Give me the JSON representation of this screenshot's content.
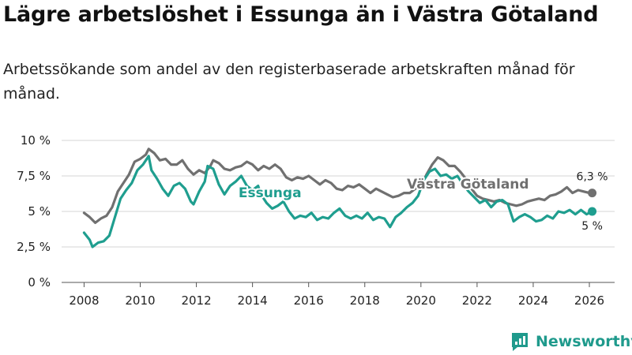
{
  "title": "Lägre arbetslöshet i Essunga än i Västra Götaland",
  "subtitle": "Arbetssökande som andel av den registerbaserade arbetskraften månad för månad.",
  "brand": {
    "name": "Newsworthy"
  },
  "colors": {
    "essunga": "#1f9e8f",
    "vg": "#707070",
    "grid": "#d6d6d6",
    "axis": "#555555"
  },
  "chart_data": {
    "type": "line",
    "title": "Lägre arbetslöshet i Essunga än i Västra Götaland",
    "xlabel": "",
    "ylabel": "",
    "xlim": [
      2007.2,
      2026.9
    ],
    "ylim": [
      0,
      10
    ],
    "y_ticks": [
      0,
      2.5,
      5,
      7.5,
      10
    ],
    "y_tick_labels": [
      "0 %",
      "2,5 %",
      "5 %",
      "7,5 %",
      "10 %"
    ],
    "x_ticks": [
      2008,
      2010,
      2012,
      2014,
      2016,
      2018,
      2020,
      2022,
      2024,
      2026
    ],
    "x_tick_labels": [
      "2008",
      "2010",
      "2012",
      "2014",
      "2016",
      "2018",
      "2020",
      "2022",
      "2024",
      "2026"
    ],
    "series": [
      {
        "name": "Västra Götaland",
        "key": "vg",
        "end_label": "6,3 %",
        "points": [
          [
            2008.0,
            4.9
          ],
          [
            2008.2,
            4.6
          ],
          [
            2008.4,
            4.2
          ],
          [
            2008.6,
            4.5
          ],
          [
            2008.8,
            4.7
          ],
          [
            2009.0,
            5.3
          ],
          [
            2009.2,
            6.4
          ],
          [
            2009.4,
            7.0
          ],
          [
            2009.6,
            7.6
          ],
          [
            2009.8,
            8.5
          ],
          [
            2010.0,
            8.7
          ],
          [
            2010.2,
            9.0
          ],
          [
            2010.3,
            9.4
          ],
          [
            2010.5,
            9.1
          ],
          [
            2010.7,
            8.6
          ],
          [
            2010.9,
            8.7
          ],
          [
            2011.1,
            8.3
          ],
          [
            2011.3,
            8.3
          ],
          [
            2011.5,
            8.6
          ],
          [
            2011.7,
            8.0
          ],
          [
            2011.9,
            7.6
          ],
          [
            2012.1,
            7.9
          ],
          [
            2012.3,
            7.7
          ],
          [
            2012.5,
            8.2
          ],
          [
            2012.6,
            8.6
          ],
          [
            2012.8,
            8.4
          ],
          [
            2013.0,
            8.0
          ],
          [
            2013.2,
            7.9
          ],
          [
            2013.4,
            8.1
          ],
          [
            2013.6,
            8.2
          ],
          [
            2013.8,
            8.5
          ],
          [
            2014.0,
            8.3
          ],
          [
            2014.2,
            7.9
          ],
          [
            2014.4,
            8.2
          ],
          [
            2014.6,
            8.0
          ],
          [
            2014.8,
            8.3
          ],
          [
            2015.0,
            8.0
          ],
          [
            2015.2,
            7.4
          ],
          [
            2015.4,
            7.2
          ],
          [
            2015.6,
            7.4
          ],
          [
            2015.8,
            7.3
          ],
          [
            2016.0,
            7.5
          ],
          [
            2016.2,
            7.2
          ],
          [
            2016.4,
            6.9
          ],
          [
            2016.6,
            7.2
          ],
          [
            2016.8,
            7.0
          ],
          [
            2017.0,
            6.6
          ],
          [
            2017.2,
            6.5
          ],
          [
            2017.4,
            6.8
          ],
          [
            2017.6,
            6.7
          ],
          [
            2017.8,
            6.9
          ],
          [
            2018.0,
            6.6
          ],
          [
            2018.2,
            6.3
          ],
          [
            2018.4,
            6.6
          ],
          [
            2018.6,
            6.4
          ],
          [
            2018.8,
            6.2
          ],
          [
            2019.0,
            6.0
          ],
          [
            2019.2,
            6.1
          ],
          [
            2019.4,
            6.3
          ],
          [
            2019.6,
            6.3
          ],
          [
            2019.8,
            6.6
          ],
          [
            2020.0,
            6.8
          ],
          [
            2020.2,
            7.6
          ],
          [
            2020.4,
            8.3
          ],
          [
            2020.6,
            8.8
          ],
          [
            2020.8,
            8.6
          ],
          [
            2021.0,
            8.2
          ],
          [
            2021.2,
            8.2
          ],
          [
            2021.4,
            7.8
          ],
          [
            2021.6,
            7.3
          ],
          [
            2021.8,
            6.6
          ],
          [
            2022.0,
            6.1
          ],
          [
            2022.2,
            5.9
          ],
          [
            2022.4,
            5.8
          ],
          [
            2022.6,
            5.7
          ],
          [
            2022.8,
            5.8
          ],
          [
            2023.0,
            5.6
          ],
          [
            2023.2,
            5.5
          ],
          [
            2023.4,
            5.4
          ],
          [
            2023.6,
            5.5
          ],
          [
            2023.8,
            5.7
          ],
          [
            2024.0,
            5.8
          ],
          [
            2024.2,
            5.9
          ],
          [
            2024.4,
            5.8
          ],
          [
            2024.6,
            6.1
          ],
          [
            2024.8,
            6.2
          ],
          [
            2025.0,
            6.4
          ],
          [
            2025.2,
            6.7
          ],
          [
            2025.4,
            6.3
          ],
          [
            2025.6,
            6.5
          ],
          [
            2025.8,
            6.4
          ],
          [
            2026.0,
            6.3
          ],
          [
            2026.1,
            6.3
          ]
        ]
      },
      {
        "name": "Essunga",
        "key": "essunga",
        "end_label": "5 %",
        "points": [
          [
            2008.0,
            3.5
          ],
          [
            2008.2,
            3.0
          ],
          [
            2008.3,
            2.5
          ],
          [
            2008.5,
            2.8
          ],
          [
            2008.7,
            2.9
          ],
          [
            2008.9,
            3.3
          ],
          [
            2009.1,
            4.6
          ],
          [
            2009.3,
            5.9
          ],
          [
            2009.5,
            6.5
          ],
          [
            2009.7,
            7.0
          ],
          [
            2009.9,
            7.9
          ],
          [
            2010.1,
            8.3
          ],
          [
            2010.3,
            8.9
          ],
          [
            2010.4,
            7.9
          ],
          [
            2010.6,
            7.3
          ],
          [
            2010.8,
            6.6
          ],
          [
            2011.0,
            6.1
          ],
          [
            2011.2,
            6.8
          ],
          [
            2011.4,
            7.0
          ],
          [
            2011.6,
            6.6
          ],
          [
            2011.8,
            5.7
          ],
          [
            2011.9,
            5.5
          ],
          [
            2012.1,
            6.4
          ],
          [
            2012.3,
            7.1
          ],
          [
            2012.4,
            8.2
          ],
          [
            2012.6,
            8.0
          ],
          [
            2012.8,
            6.9
          ],
          [
            2013.0,
            6.2
          ],
          [
            2013.2,
            6.8
          ],
          [
            2013.4,
            7.1
          ],
          [
            2013.6,
            7.5
          ],
          [
            2013.8,
            6.8
          ],
          [
            2014.0,
            6.5
          ],
          [
            2014.2,
            6.8
          ],
          [
            2014.3,
            6.2
          ],
          [
            2014.5,
            5.6
          ],
          [
            2014.7,
            5.2
          ],
          [
            2014.9,
            5.4
          ],
          [
            2015.1,
            5.7
          ],
          [
            2015.3,
            5.0
          ],
          [
            2015.5,
            4.5
          ],
          [
            2015.7,
            4.7
          ],
          [
            2015.9,
            4.6
          ],
          [
            2016.1,
            4.9
          ],
          [
            2016.3,
            4.4
          ],
          [
            2016.5,
            4.6
          ],
          [
            2016.7,
            4.5
          ],
          [
            2016.9,
            4.9
          ],
          [
            2017.1,
            5.2
          ],
          [
            2017.3,
            4.7
          ],
          [
            2017.5,
            4.5
          ],
          [
            2017.7,
            4.7
          ],
          [
            2017.9,
            4.5
          ],
          [
            2018.1,
            4.9
          ],
          [
            2018.3,
            4.4
          ],
          [
            2018.5,
            4.6
          ],
          [
            2018.7,
            4.5
          ],
          [
            2018.9,
            3.9
          ],
          [
            2019.1,
            4.6
          ],
          [
            2019.3,
            4.9
          ],
          [
            2019.5,
            5.3
          ],
          [
            2019.7,
            5.6
          ],
          [
            2019.9,
            6.1
          ],
          [
            2020.1,
            7.2
          ],
          [
            2020.3,
            7.8
          ],
          [
            2020.5,
            8.0
          ],
          [
            2020.7,
            7.5
          ],
          [
            2020.9,
            7.6
          ],
          [
            2021.1,
            7.3
          ],
          [
            2021.3,
            7.5
          ],
          [
            2021.5,
            6.9
          ],
          [
            2021.7,
            6.4
          ],
          [
            2021.9,
            6.0
          ],
          [
            2022.1,
            5.6
          ],
          [
            2022.3,
            5.8
          ],
          [
            2022.5,
            5.3
          ],
          [
            2022.7,
            5.7
          ],
          [
            2022.9,
            5.8
          ],
          [
            2023.1,
            5.5
          ],
          [
            2023.3,
            4.3
          ],
          [
            2023.5,
            4.6
          ],
          [
            2023.7,
            4.8
          ],
          [
            2023.9,
            4.6
          ],
          [
            2024.1,
            4.3
          ],
          [
            2024.3,
            4.4
          ],
          [
            2024.5,
            4.7
          ],
          [
            2024.7,
            4.5
          ],
          [
            2024.9,
            5.0
          ],
          [
            2025.1,
            4.9
          ],
          [
            2025.3,
            5.1
          ],
          [
            2025.5,
            4.8
          ],
          [
            2025.7,
            5.1
          ],
          [
            2025.9,
            4.8
          ],
          [
            2026.1,
            5.0
          ]
        ]
      }
    ],
    "inline_labels": [
      {
        "series": "Essunga",
        "text": "Essunga",
        "x": 2013.5,
        "y": 6.0
      },
      {
        "series": "Västra Götaland",
        "text": "Västra Götaland",
        "x": 2019.5,
        "y": 6.6
      }
    ]
  }
}
